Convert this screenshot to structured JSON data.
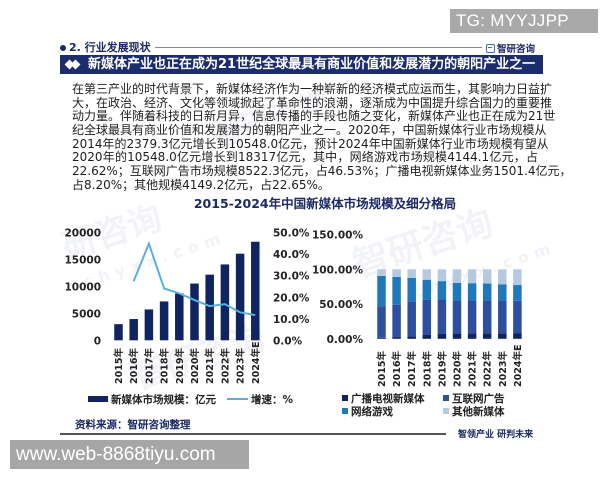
{
  "overlay": {
    "top_right_tag": "TG: MYYJJPP",
    "bottom_left_url": "www.web-8868tiyu.com"
  },
  "header": {
    "section": "2. 行业发展现状",
    "logo_text": "智研咨询"
  },
  "banner": {
    "title": "新媒体产业也正在成为21世纪全球最具有商业价值和发展潜力的朝阳产业之一"
  },
  "body": {
    "lines": [
      "在第三产业的时代背景下，新媒体经济作为一种崭新的经济模式应运而生，其影响力日益扩",
      "大，在政治、经济、文化等领域掀起了革命性的浪潮，逐渐成为中国提升综合国力的重要推",
      "动力量。伴随着科技的日新月异，信息传播的手段也随之变化，新媒体产业也正在成为21世",
      "纪全球最具有商业价值和发展潜力的朝阳产业之一。2020年，中国新媒体行业市场规模从",
      "2014年的2379.3亿元增长到10548.0亿元，预计2024年中国新媒体行业市场规模有望从",
      "2020年的10548.0亿元增长到18317亿元，其中，网络游戏市场规模4144.1亿元，占",
      "22.62%；互联网广告市场规模8522.3亿元，占46.53%；广播电视新媒体业务1501.4亿元，",
      "占8.20%；其他规模4149.2亿元，占22.65%。"
    ]
  },
  "chart_title": "2015-2024年中国新媒体市场规模及细分格局",
  "chart_data": [
    {
      "type": "bar",
      "subtype": "bar+line dual axis",
      "title": "2015-2024年中国新媒体市场规模及细分格局",
      "categories": [
        "2015年",
        "2016年",
        "2017年",
        "2018年",
        "2019年",
        "2020年",
        "2021年",
        "2022年",
        "2023年",
        "2024年E"
      ],
      "series": [
        {
          "name": "新媒体市场规模：亿元",
          "type": "bar",
          "axis": "left",
          "color": "#0f2460",
          "values": [
            3000,
            3950,
            5740,
            7220,
            8700,
            10548,
            12200,
            14100,
            16100,
            18317
          ]
        },
        {
          "name": "增速：%",
          "type": "line",
          "axis": "right",
          "color": "#5aaee0",
          "values": [
            null,
            27.5,
            44.9,
            24.1,
            21.8,
            18.7,
            15.9,
            16.8,
            13.0,
            11.7
          ]
        }
      ],
      "y_left": {
        "range": [
          0,
          20000
        ],
        "ticks": [
          0,
          5000,
          10000,
          15000,
          20000
        ],
        "tick_labels": [
          "0",
          "5000",
          "10000",
          "15000",
          "20000"
        ]
      },
      "y_right": {
        "range": [
          0,
          50
        ],
        "ticks": [
          0,
          10,
          20,
          30,
          40,
          50
        ],
        "tick_labels": [
          "0.0%",
          "10.0%",
          "20.0%",
          "30.0%",
          "40.0%",
          "50.0%"
        ]
      },
      "xlabel": "",
      "ylabel": "",
      "grid": false,
      "legend_position": "bottom"
    },
    {
      "type": "bar",
      "subtype": "stacked percent bar",
      "categories": [
        "2015年",
        "2016年",
        "2017年",
        "2018年",
        "2019年",
        "2020年",
        "2021年",
        "2022年",
        "2023年",
        "2024年E"
      ],
      "series": [
        {
          "name": "广播电视新媒体",
          "color": "#10235f",
          "values": [
            1.5,
            2.5,
            3.5,
            5.5,
            7.0,
            7.5,
            8.0,
            8.0,
            8.0,
            8.2
          ]
        },
        {
          "name": "互联网广告",
          "color": "#2d4f9e",
          "values": [
            45.5,
            46.5,
            50.0,
            50.5,
            49.5,
            47.5,
            47.0,
            47.0,
            47.5,
            46.53
          ]
        },
        {
          "name": "网络游戏",
          "color": "#1f78b9",
          "values": [
            43.5,
            40.0,
            34.0,
            29.0,
            26.5,
            25.5,
            25.0,
            24.5,
            23.0,
            22.62
          ]
        },
        {
          "name": "其他新媒体",
          "color": "#b6c9de",
          "values": [
            9.5,
            11.0,
            12.5,
            15.0,
            17.0,
            19.5,
            20.0,
            20.5,
            21.5,
            22.65
          ]
        }
      ],
      "y": {
        "range": [
          0,
          150
        ],
        "ticks": [
          0,
          50,
          100,
          150
        ],
        "tick_labels": [
          "0.00%",
          "50.00%",
          "100.00%",
          "150.00%"
        ]
      },
      "xlabel": "",
      "ylabel": "",
      "grid": false,
      "legend_position": "bottom"
    }
  ],
  "footer": {
    "source": "资料来源：智研咨询整理",
    "slogan": "智领产业 研判未来"
  },
  "watermark": {
    "brand": "智研咨询",
    "brand_short": "研咨询",
    "site": "chyxx.com"
  }
}
